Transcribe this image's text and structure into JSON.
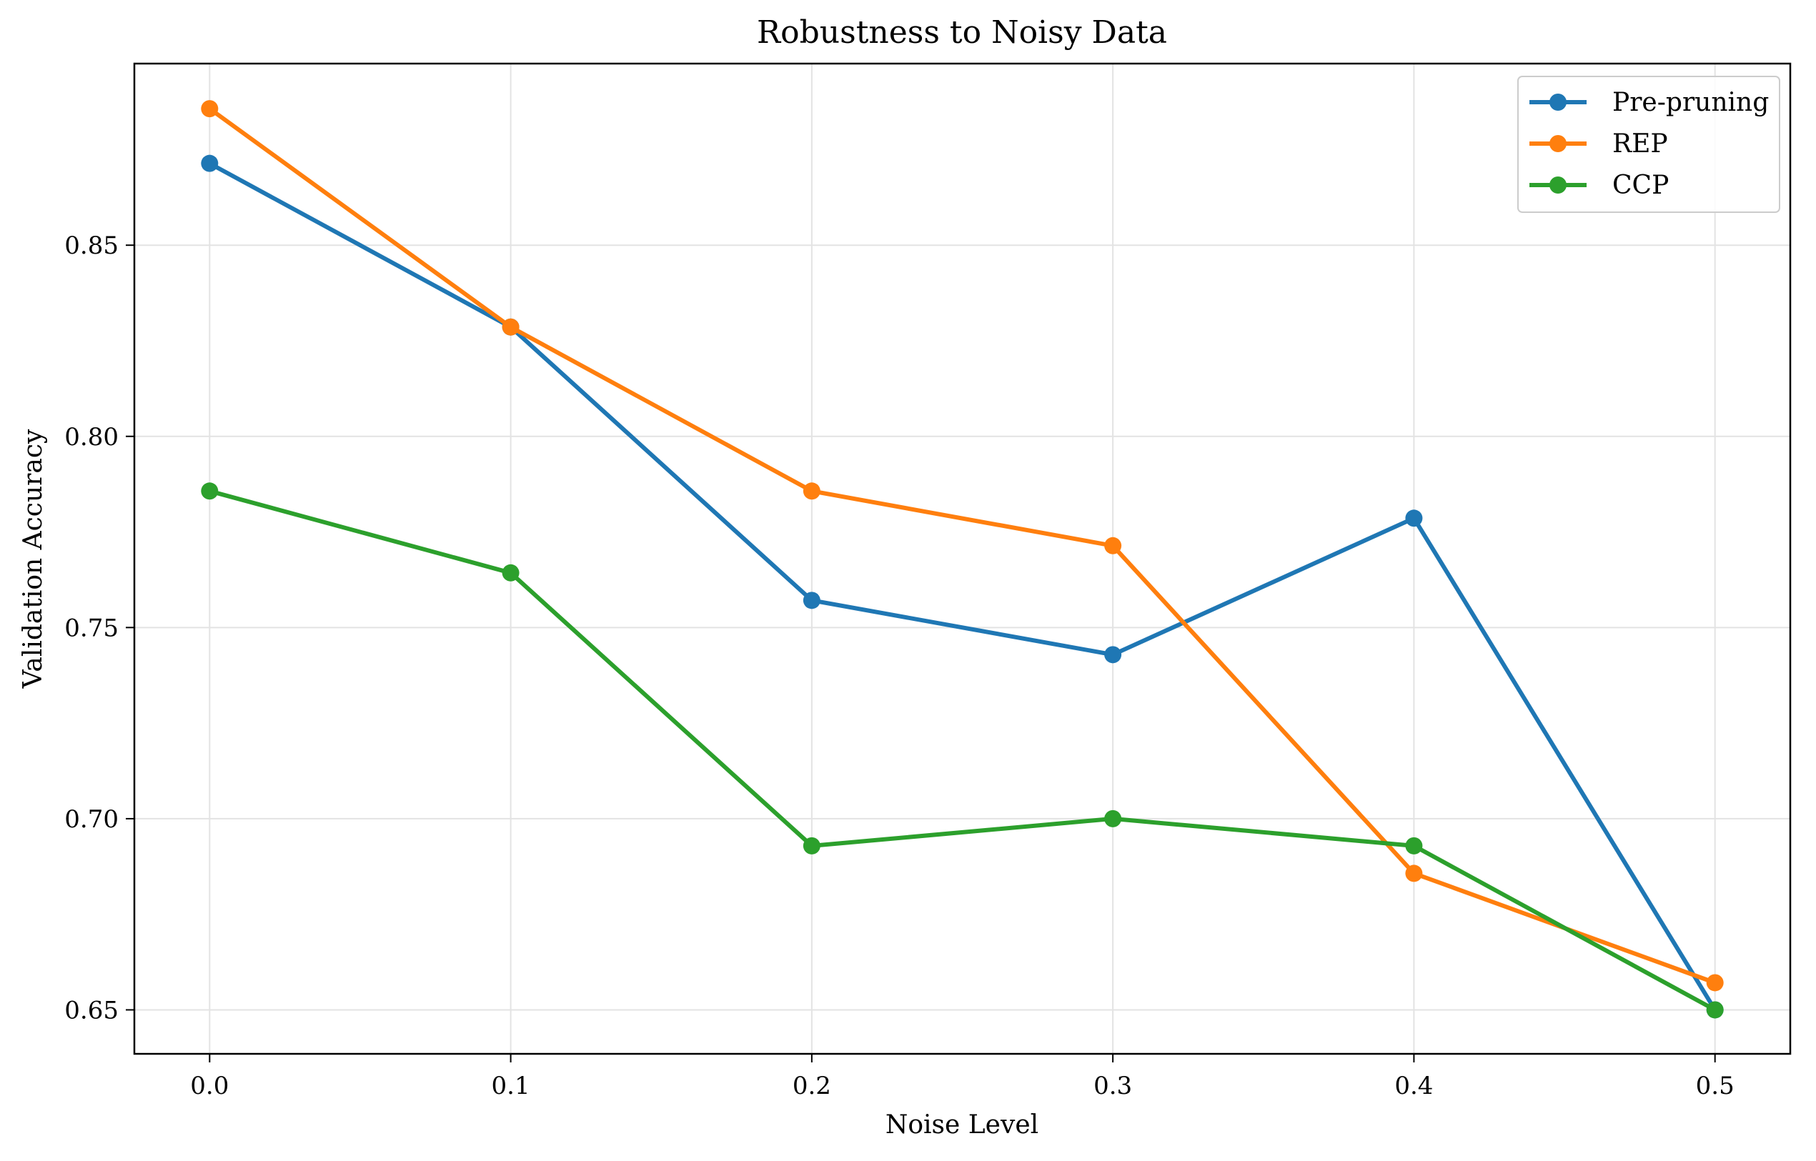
{
  "chart_data": {
    "type": "line",
    "title": "Robustness to Noisy Data",
    "xlabel": "Noise Level",
    "ylabel": "Validation Accuracy",
    "x": [
      0.0,
      0.1,
      0.2,
      0.3,
      0.4,
      0.5
    ],
    "x_tick_labels": [
      "0.0",
      "0.1",
      "0.2",
      "0.3",
      "0.4",
      "0.5"
    ],
    "y_ticks": [
      0.65,
      0.7,
      0.75,
      0.8,
      0.85
    ],
    "y_tick_labels": [
      "0.65",
      "0.70",
      "0.75",
      "0.80",
      "0.85"
    ],
    "xlim": [
      -0.025,
      0.525
    ],
    "ylim": [
      0.6385,
      0.8975
    ],
    "grid": true,
    "legend_position": "top-right",
    "series": [
      {
        "name": "Pre-pruning",
        "color": "#1f77b4",
        "values": [
          0.8714,
          0.8286,
          0.7571,
          0.7429,
          0.7786,
          0.65
        ]
      },
      {
        "name": "REP",
        "color": "#ff7f0e",
        "values": [
          0.8857,
          0.8286,
          0.7857,
          0.7714,
          0.6857,
          0.6571
        ]
      },
      {
        "name": "CCP",
        "color": "#2ca02c",
        "values": [
          0.7857,
          0.7643,
          0.6929,
          0.7,
          0.6929,
          0.65
        ]
      }
    ]
  }
}
